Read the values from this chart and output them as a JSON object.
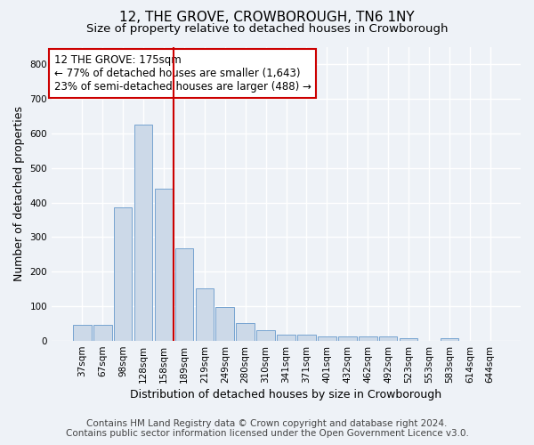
{
  "title": "12, THE GROVE, CROWBOROUGH, TN6 1NY",
  "subtitle": "Size of property relative to detached houses in Crowborough",
  "xlabel": "Distribution of detached houses by size in Crowborough",
  "ylabel": "Number of detached properties",
  "bar_labels": [
    "37sqm",
    "67sqm",
    "98sqm",
    "128sqm",
    "158sqm",
    "189sqm",
    "219sqm",
    "249sqm",
    "280sqm",
    "310sqm",
    "341sqm",
    "371sqm",
    "401sqm",
    "432sqm",
    "462sqm",
    "492sqm",
    "523sqm",
    "553sqm",
    "583sqm",
    "614sqm",
    "644sqm"
  ],
  "bar_values": [
    47,
    47,
    385,
    625,
    440,
    268,
    153,
    98,
    52,
    30,
    17,
    17,
    12,
    12,
    12,
    12,
    8,
    0,
    8,
    0,
    0
  ],
  "bar_color": "#ccd9e8",
  "bar_edge_color": "#6699cc",
  "vline_x_index": 5,
  "vline_color": "#cc0000",
  "annotation_text": "12 THE GROVE: 175sqm\n← 77% of detached houses are smaller (1,643)\n23% of semi-detached houses are larger (488) →",
  "annotation_box_color": "white",
  "annotation_box_edge": "#cc0000",
  "ylim": [
    0,
    850
  ],
  "yticks": [
    0,
    100,
    200,
    300,
    400,
    500,
    600,
    700,
    800
  ],
  "footer_line1": "Contains HM Land Registry data © Crown copyright and database right 2024.",
  "footer_line2": "Contains public sector information licensed under the Open Government Licence v3.0.",
  "bg_color": "#eef2f7",
  "plot_bg_color": "#eef2f7",
  "grid_color": "white",
  "title_fontsize": 11,
  "subtitle_fontsize": 9.5,
  "axis_label_fontsize": 9,
  "tick_fontsize": 7.5,
  "annotation_fontsize": 8.5,
  "footer_fontsize": 7.5
}
